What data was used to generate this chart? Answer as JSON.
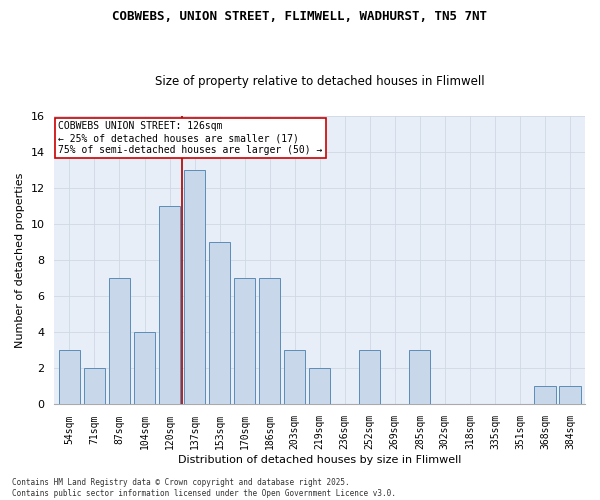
{
  "title1": "COBWEBS, UNION STREET, FLIMWELL, WADHURST, TN5 7NT",
  "title2": "Size of property relative to detached houses in Flimwell",
  "xlabel": "Distribution of detached houses by size in Flimwell",
  "ylabel": "Number of detached properties",
  "categories": [
    "54sqm",
    "71sqm",
    "87sqm",
    "104sqm",
    "120sqm",
    "137sqm",
    "153sqm",
    "170sqm",
    "186sqm",
    "203sqm",
    "219sqm",
    "236sqm",
    "252sqm",
    "269sqm",
    "285sqm",
    "302sqm",
    "318sqm",
    "335sqm",
    "351sqm",
    "368sqm",
    "384sqm"
  ],
  "values": [
    3,
    2,
    7,
    4,
    11,
    13,
    9,
    7,
    7,
    3,
    2,
    0,
    3,
    0,
    3,
    0,
    0,
    0,
    0,
    1,
    1
  ],
  "bar_color": "#c8d8ea",
  "bar_edge_color": "#5b8db8",
  "grid_color": "#d0d8e4",
  "bg_color": "#e8eef8",
  "vline_x": 5,
  "vline_color": "#aa0000",
  "annotation_text": "COBWEBS UNION STREET: 126sqm\n← 25% of detached houses are smaller (17)\n75% of semi-detached houses are larger (50) →",
  "annotation_box_color": "#ffffff",
  "annotation_box_edge": "#cc0000",
  "footer": "Contains HM Land Registry data © Crown copyright and database right 2025.\nContains public sector information licensed under the Open Government Licence v3.0.",
  "ylim": [
    0,
    16
  ],
  "yticks": [
    0,
    2,
    4,
    6,
    8,
    10,
    12,
    14,
    16
  ],
  "fig_bg": "#ffffff"
}
